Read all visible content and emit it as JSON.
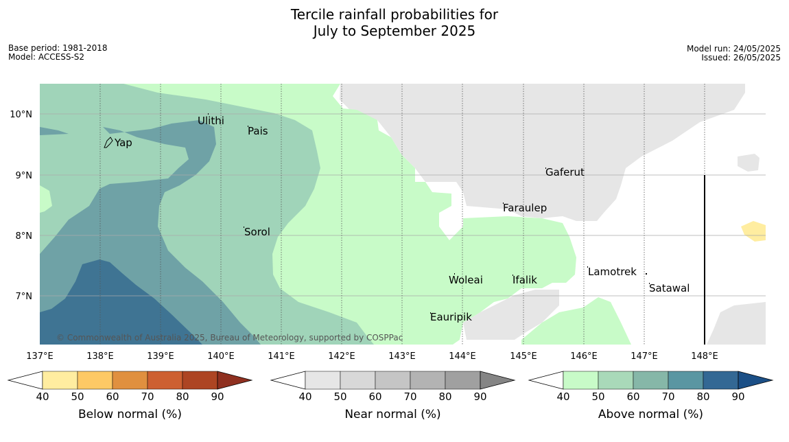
{
  "title": {
    "line1": "Tercile rainfall probabilities for",
    "line2": "July to September 2025"
  },
  "info": {
    "base_period": "Base period: 1981-2018",
    "model": "Model: ACCESS-S2",
    "model_run": "Model run: 24/05/2025",
    "issued": "Issued: 26/05/2025"
  },
  "map": {
    "lat_labels": [
      "10°N",
      "9°N",
      "8°N",
      "7°N"
    ],
    "lon_labels": [
      "137°E",
      "138°E",
      "139°E",
      "140°E",
      "141°E",
      "142°E",
      "143°E",
      "144°E",
      "145°E",
      "146°E",
      "147°E",
      "148°E"
    ],
    "places": [
      "Ulithi",
      "Pais",
      "Yap",
      "Gaferut",
      "Faraulep",
      "Sorol",
      "Lamotrek",
      "Woleai",
      "Ifalik",
      "Satawal",
      "Eauripik"
    ],
    "copyright": "© Commonwealth of Australia 2025, Bureau of Meteorology, supported by COSPPac"
  },
  "legends": [
    {
      "label": "Below normal (%)",
      "ticks": [
        "40",
        "50",
        "60",
        "70",
        "80",
        "90"
      ],
      "colors": [
        "#ffeda0",
        "#fec965",
        "#e0903f",
        "#cd6031",
        "#ad4523",
        "#8f3020"
      ]
    },
    {
      "label": "Near normal (%)",
      "ticks": [
        "40",
        "50",
        "60",
        "70",
        "80",
        "90"
      ],
      "colors": [
        "#e6e6e6",
        "#d8d8d8",
        "#c5c5c5",
        "#b3b3b3",
        "#a0a0a0",
        "#858585"
      ]
    },
    {
      "label": "Above normal (%)",
      "ticks": [
        "40",
        "50",
        "60",
        "70",
        "80",
        "90"
      ],
      "colors": [
        "#c8fbc8",
        "#a9d9b9",
        "#86b7a8",
        "#5a96a2",
        "#336894",
        "#1b4f86"
      ]
    }
  ]
}
